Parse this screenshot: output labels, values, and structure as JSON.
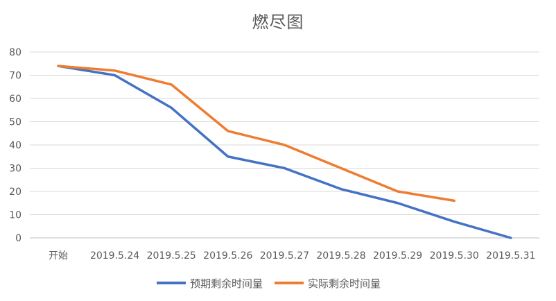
{
  "chart_data": {
    "type": "line",
    "title": "燃尽图",
    "xlabel": "",
    "ylabel": "",
    "categories": [
      "开始",
      "2019.5.24",
      "2019.5.25",
      "2019.5.26",
      "2019.5.27",
      "2019.5.28",
      "2019.5.29",
      "2019.5.30",
      "2019.5.31"
    ],
    "ylim": [
      0,
      80
    ],
    "yticks": [
      0,
      10,
      20,
      30,
      40,
      50,
      60,
      70,
      80
    ],
    "grid": true,
    "legend_position": "bottom",
    "series": [
      {
        "name": "预期剩余时间量",
        "color": "#4472C4",
        "values": [
          74,
          70,
          56,
          35,
          30,
          21,
          15,
          7,
          0
        ]
      },
      {
        "name": "实际剩余时间量",
        "color": "#ED7D31",
        "values": [
          74,
          72,
          66,
          46,
          40,
          30,
          20,
          16,
          null
        ]
      }
    ]
  }
}
